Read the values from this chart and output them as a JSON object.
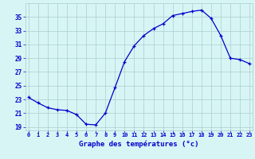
{
  "hours": [
    0,
    1,
    2,
    3,
    4,
    5,
    6,
    7,
    8,
    9,
    10,
    11,
    12,
    13,
    14,
    15,
    16,
    17,
    18,
    19,
    20,
    21,
    22,
    23
  ],
  "temps": [
    23.3,
    22.5,
    21.8,
    21.5,
    21.4,
    20.8,
    19.4,
    19.3,
    21.0,
    24.7,
    28.5,
    30.8,
    32.3,
    33.3,
    34.0,
    35.2,
    35.5,
    35.8,
    36.0,
    34.8,
    32.3,
    29.0,
    28.8,
    28.2
  ],
  "xlabel": "Graphe des températures (°c)",
  "ylim": [
    18.5,
    37.0
  ],
  "xlim": [
    -0.3,
    23.3
  ],
  "yticks": [
    19,
    21,
    23,
    25,
    27,
    29,
    31,
    33,
    35
  ],
  "xticks": [
    0,
    1,
    2,
    3,
    4,
    5,
    6,
    7,
    8,
    9,
    10,
    11,
    12,
    13,
    14,
    15,
    16,
    17,
    18,
    19,
    20,
    21,
    22,
    23
  ],
  "line_color": "#0000cc",
  "marker_color": "#0000cc",
  "bg_color": "#d8f5f5",
  "grid_color": "#aacece",
  "xlabel_color": "#0000cc",
  "tick_label_color": "#0000cc",
  "marker": "+"
}
